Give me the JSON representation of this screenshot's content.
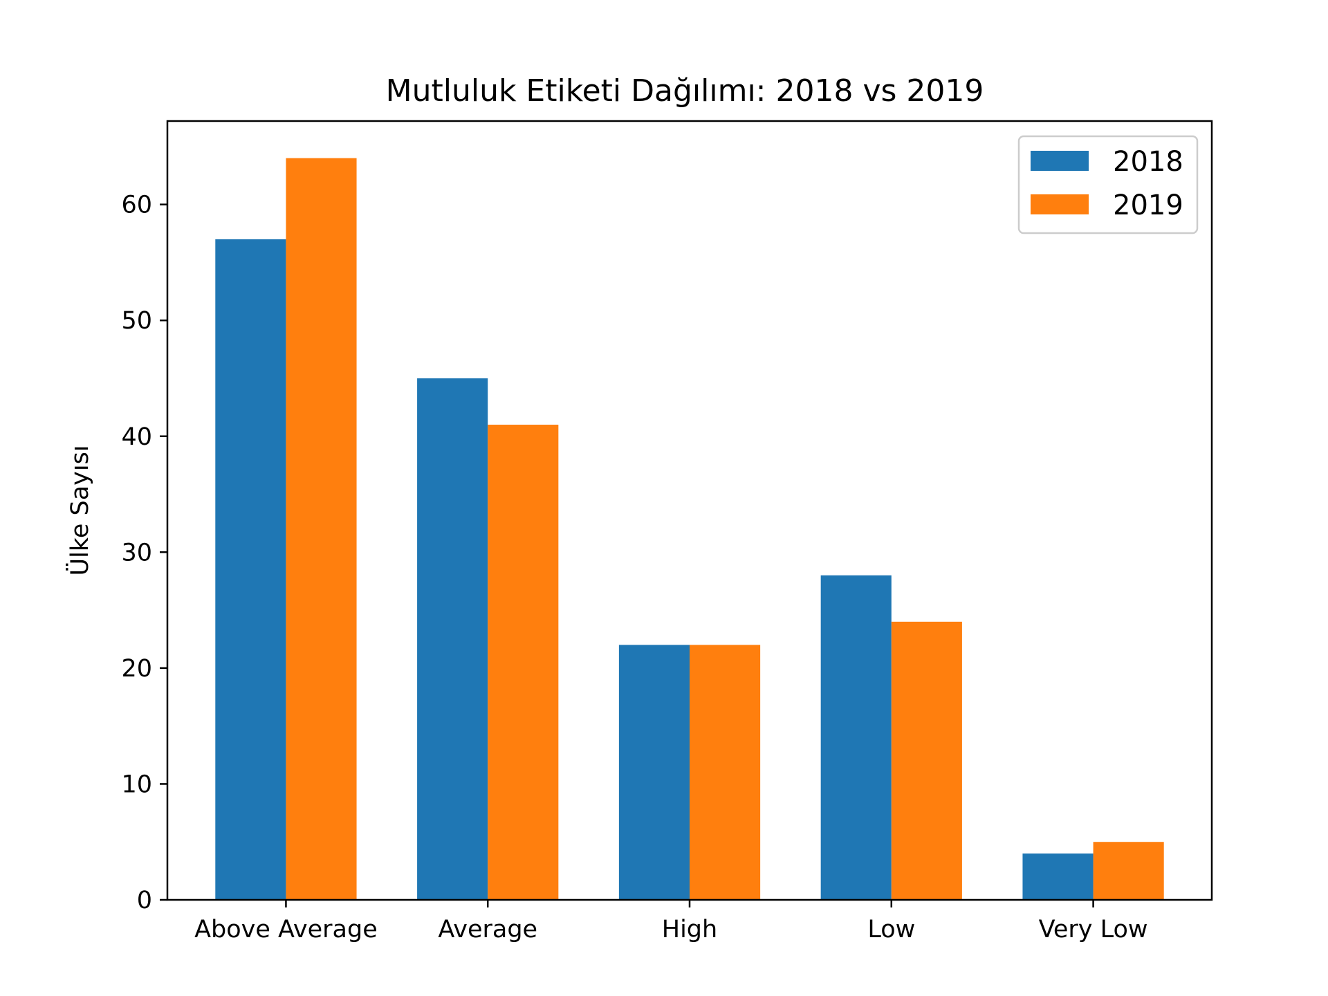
{
  "chart_data": {
    "type": "bar",
    "title": "Mutluluk Etiketi Dağılımı: 2018 vs 2019",
    "xlabel": "",
    "ylabel": "Ülke Sayısı",
    "categories": [
      "Above Average",
      "Average",
      "High",
      "Low",
      "Very Low"
    ],
    "series": [
      {
        "name": "2018",
        "values": [
          57,
          45,
          22,
          28,
          4
        ],
        "color": "#1f77b4"
      },
      {
        "name": "2019",
        "values": [
          64,
          41,
          22,
          24,
          5
        ],
        "color": "#ff7f0e"
      }
    ],
    "ylim": [
      0,
      67.2
    ],
    "yticks": [
      0,
      10,
      20,
      30,
      40,
      50,
      60
    ],
    "grid": false,
    "legend_position": "upper-right"
  }
}
